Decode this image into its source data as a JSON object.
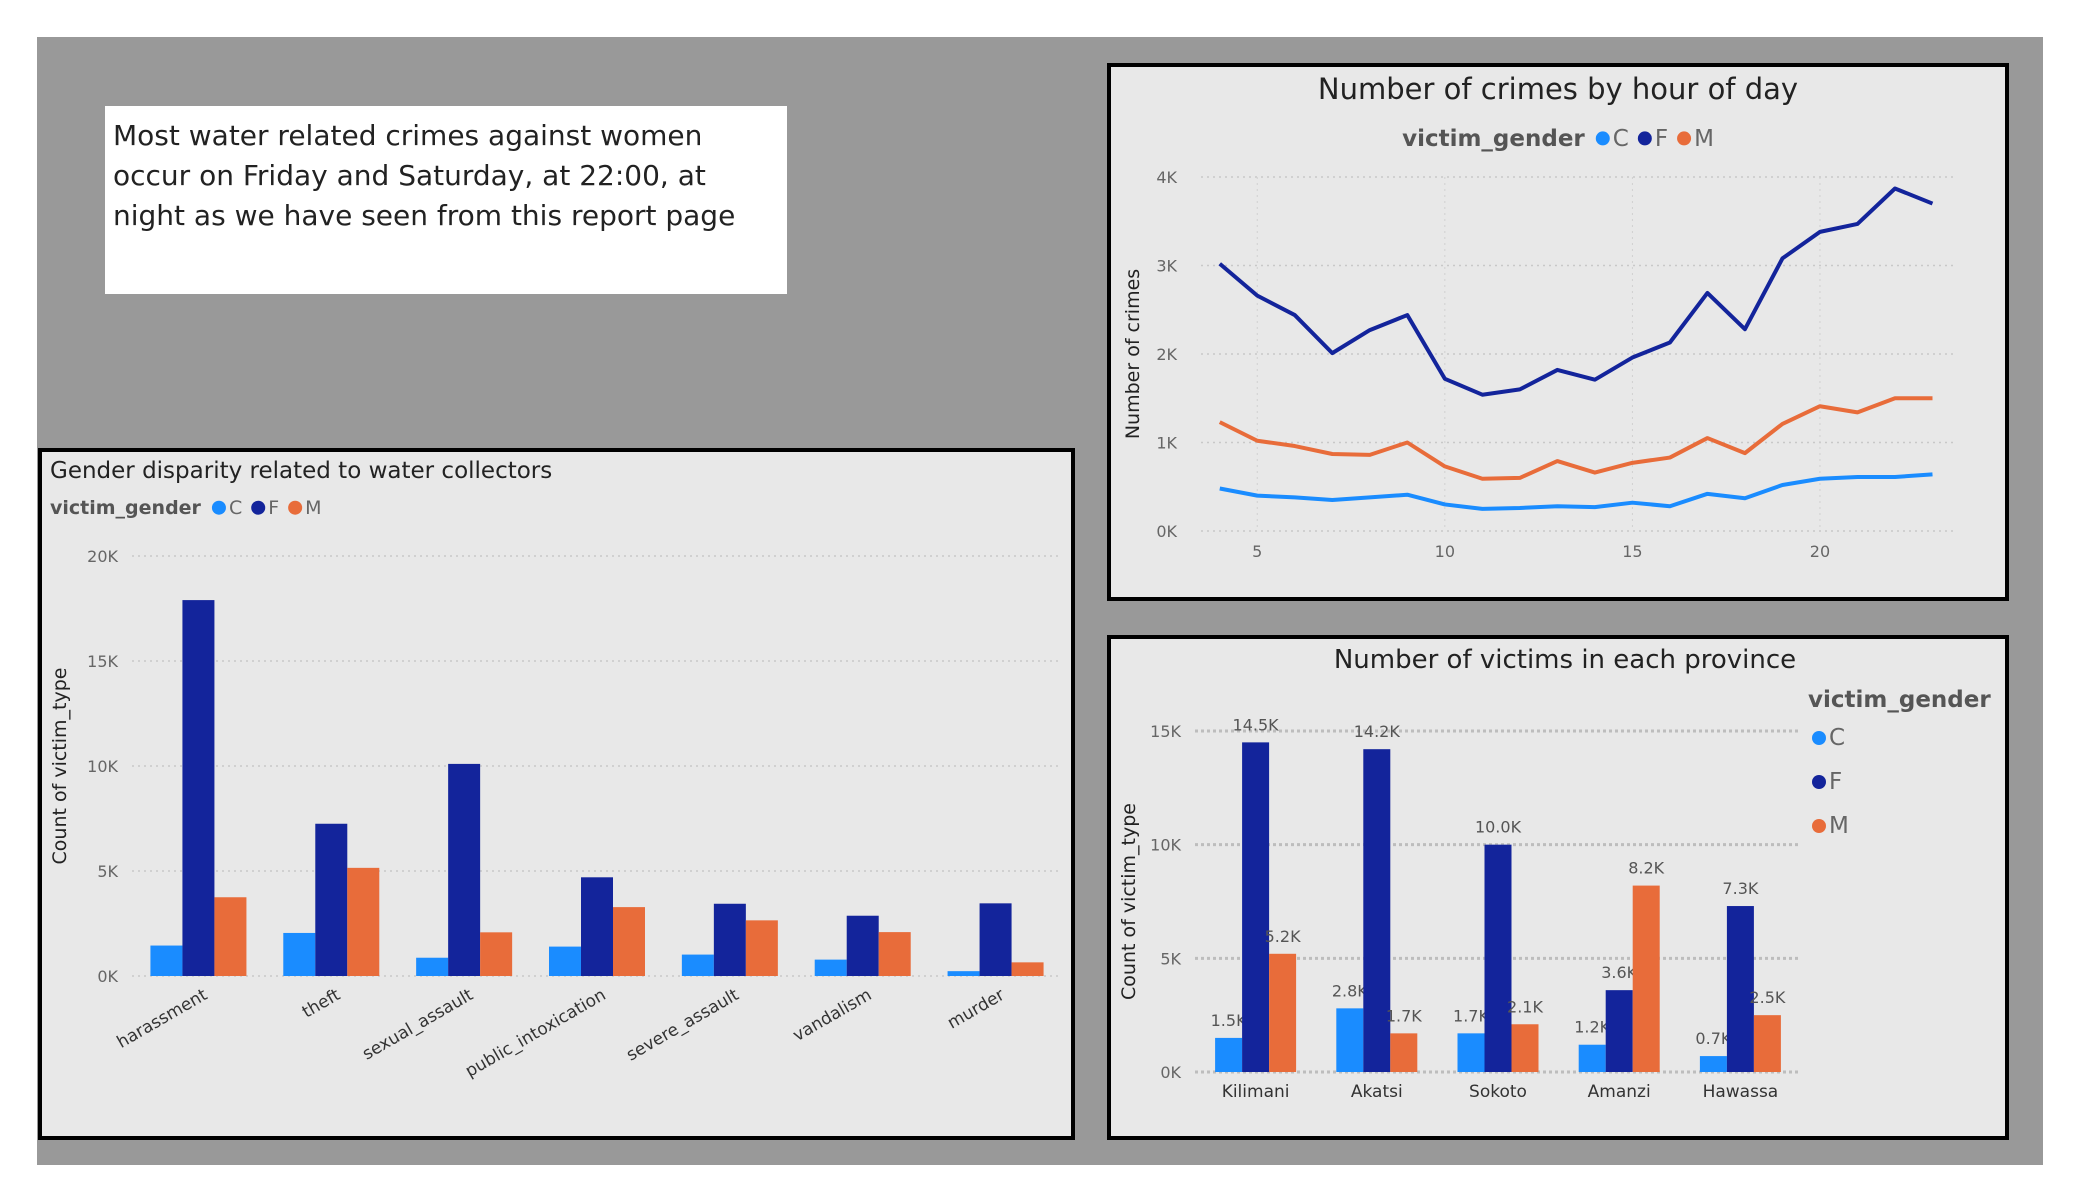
{
  "note": {
    "text": "Most water related crimes against women occur on Friday and Saturday, at 22:00, at night as we have seen from this report page"
  },
  "colors": {
    "C": "#1a8cff",
    "F": "#13249b",
    "M": "#e86c3a"
  },
  "legend": {
    "title": "victim_gender",
    "items": [
      "C",
      "F",
      "M"
    ]
  },
  "chart_data": [
    {
      "id": "hourly",
      "type": "line",
      "title": "Number of crimes by hour of day",
      "xlabel": "",
      "ylabel": "Number of crimes",
      "x": [
        4,
        5,
        6,
        7,
        8,
        9,
        10,
        11,
        12,
        13,
        14,
        15,
        16,
        17,
        18,
        19,
        20,
        21,
        22,
        23
      ],
      "xticks": [
        5,
        10,
        15,
        20
      ],
      "ylim": [
        0,
        4000
      ],
      "yticks": [
        0,
        1000,
        2000,
        3000,
        4000
      ],
      "ytick_labels": [
        "0K",
        "1K",
        "2K",
        "3K",
        "4K"
      ],
      "legend_position": "top",
      "grid": true,
      "series": [
        {
          "name": "C",
          "values": [
            480,
            400,
            380,
            350,
            380,
            410,
            300,
            250,
            260,
            280,
            270,
            320,
            280,
            420,
            370,
            520,
            590,
            610,
            610,
            640
          ]
        },
        {
          "name": "F",
          "values": [
            3020,
            2660,
            2440,
            2010,
            2270,
            2440,
            1720,
            1540,
            1600,
            1820,
            1710,
            1960,
            2130,
            2690,
            2280,
            3080,
            3380,
            3470,
            3870,
            3700
          ]
        },
        {
          "name": "M",
          "values": [
            1230,
            1020,
            960,
            870,
            860,
            1000,
            730,
            590,
            600,
            790,
            660,
            770,
            830,
            1050,
            880,
            1210,
            1410,
            1340,
            1500,
            1500
          ]
        }
      ]
    },
    {
      "id": "gender",
      "type": "bar",
      "title": "Gender disparity related to water collectors",
      "xlabel": "",
      "ylabel": "Count of victim_type",
      "categories": [
        "harassment",
        "theft",
        "sexual_assault",
        "public_intoxication",
        "severe_assault",
        "vandalism",
        "murder"
      ],
      "ylim": [
        0,
        20000
      ],
      "yticks": [
        0,
        5000,
        10000,
        15000,
        20000
      ],
      "ytick_labels": [
        "0K",
        "5K",
        "10K",
        "15K",
        "20K"
      ],
      "legend_position": "top-left",
      "grid": true,
      "series": [
        {
          "name": "C",
          "values": [
            1450,
            2050,
            870,
            1400,
            1020,
            780,
            230
          ]
        },
        {
          "name": "F",
          "values": [
            17900,
            7250,
            10100,
            4700,
            3440,
            2870,
            3460
          ]
        },
        {
          "name": "M",
          "values": [
            3750,
            5150,
            2080,
            3280,
            2650,
            2090,
            650
          ]
        }
      ]
    },
    {
      "id": "province",
      "type": "bar",
      "title": "Number of victims in each province",
      "xlabel": "",
      "ylabel": "Count of victim_type",
      "categories": [
        "Kilimani",
        "Akatsi",
        "Sokoto",
        "Amanzi",
        "Hawassa"
      ],
      "ylim": [
        0,
        15000
      ],
      "yticks": [
        0,
        5000,
        10000,
        15000
      ],
      "ytick_labels": [
        "0K",
        "5K",
        "10K",
        "15K"
      ],
      "legend_position": "right",
      "grid": true,
      "series": [
        {
          "name": "C",
          "values": [
            1500,
            2800,
            1700,
            1200,
            700
          ],
          "labels": [
            "1.5K",
            "2.8K",
            "1.7K",
            "1.2K",
            "0.7K"
          ]
        },
        {
          "name": "F",
          "values": [
            14500,
            14200,
            10000,
            3600,
            7300
          ],
          "labels": [
            "14.5K",
            "14.2K",
            "10.0K",
            "3.6K",
            "7.3K"
          ]
        },
        {
          "name": "M",
          "values": [
            5200,
            1700,
            2100,
            8200,
            2500
          ],
          "labels": [
            "5.2K",
            "1.7K",
            "2.1K",
            "8.2K",
            "2.5K"
          ]
        }
      ]
    }
  ]
}
